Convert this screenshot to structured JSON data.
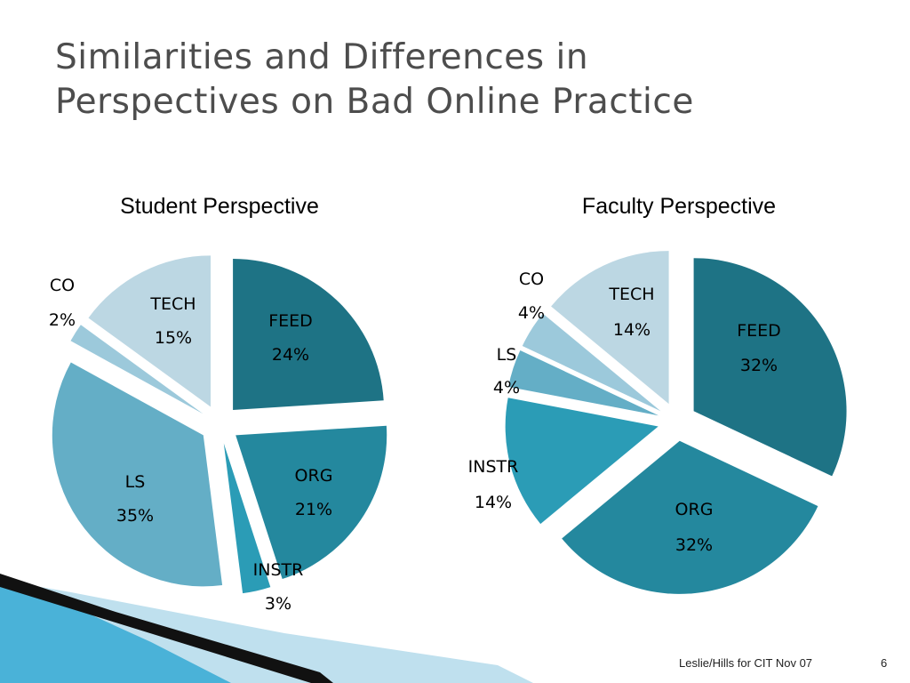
{
  "slide": {
    "title_lines": [
      "Similarities and Differences in",
      "Perspectives on Bad Online Practice"
    ],
    "footer_credit": "Leslie/Hills for CIT Nov 07",
    "page_number": "6"
  },
  "colors": {
    "FEED": "#1e7385",
    "ORG": "#24889e",
    "INSTR": "#2b9cb6",
    "LS": "#64aec6",
    "CO": "#9cc9db",
    "TECH": "#bcd7e3",
    "title": "#4d4d4d",
    "decor_dark": "#111111",
    "decor_light": "#bfe0ee",
    "decor_blue": "#4ab2d8"
  },
  "chart_data": [
    {
      "type": "pie",
      "title": "Student Perspective",
      "exploded": true,
      "slices": [
        {
          "label": "FEED",
          "value": 24,
          "value_label": "24%"
        },
        {
          "label": "ORG",
          "value": 21,
          "value_label": "21%"
        },
        {
          "label": "INSTR",
          "value": 3,
          "value_label": "3%"
        },
        {
          "label": "LS",
          "value": 35,
          "value_label": "35%"
        },
        {
          "label": "CO",
          "value": 2,
          "value_label": "2%"
        },
        {
          "label": "TECH",
          "value": 15,
          "value_label": "15%"
        }
      ]
    },
    {
      "type": "pie",
      "title": "Faculty Perspective",
      "exploded": true,
      "slices": [
        {
          "label": "FEED",
          "value": 32,
          "value_label": "32%"
        },
        {
          "label": "ORG",
          "value": 32,
          "value_label": "32%"
        },
        {
          "label": "INSTR",
          "value": 14,
          "value_label": "14%"
        },
        {
          "label": "LS",
          "value": 4,
          "value_label": "4%"
        },
        {
          "label": "CO",
          "value": 4,
          "value_label": "4%"
        },
        {
          "label": "TECH",
          "value": 14,
          "value_label": "14%"
        }
      ]
    }
  ]
}
